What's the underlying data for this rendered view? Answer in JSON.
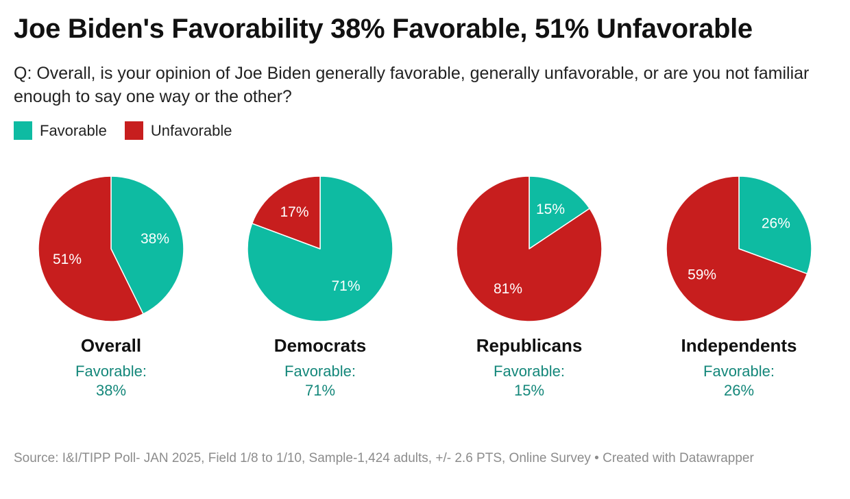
{
  "header": {
    "title": "Joe Biden's Favorability 38% Favorable, 51% Unfavorable",
    "subtitle": "Q: Overall, is your opinion of Joe Biden generally favorable, generally unfavorable, or are you not familiar enough to say one way or the other?"
  },
  "legend": [
    {
      "label": "Favorable",
      "color": "#0ebba2"
    },
    {
      "label": "Unfavorable",
      "color": "#c71e1e"
    }
  ],
  "chart_data": {
    "type": "pie",
    "series_names": [
      "Favorable",
      "Unfavorable"
    ],
    "colors": {
      "Favorable": "#0ebba2",
      "Unfavorable": "#c71e1e"
    },
    "charts": [
      {
        "group": "Overall",
        "favorable": 38,
        "unfavorable": 51,
        "favorable_label": "38%",
        "unfavorable_label": "51%",
        "caption": "Favorable:",
        "caption_value": "38%"
      },
      {
        "group": "Democrats",
        "favorable": 71,
        "unfavorable": 17,
        "favorable_label": "71%",
        "unfavorable_label": "17%",
        "caption": "Favorable:",
        "caption_value": "71%"
      },
      {
        "group": "Republicans",
        "favorable": 15,
        "unfavorable": 81,
        "favorable_label": "15%",
        "unfavorable_label": "81%",
        "caption": "Favorable:",
        "caption_value": "15%"
      },
      {
        "group": "Independents",
        "favorable": 26,
        "unfavorable": 59,
        "favorable_label": "26%",
        "unfavorable_label": "59%",
        "caption": "Favorable:",
        "caption_value": "26%"
      }
    ]
  },
  "footer": {
    "source": "Source: I&I/TIPP Poll- JAN 2025, Field 1/8 to 1/10, Sample-1,424 adults, +/- 2.6 PTS, Online Survey • Created with Datawrapper"
  }
}
